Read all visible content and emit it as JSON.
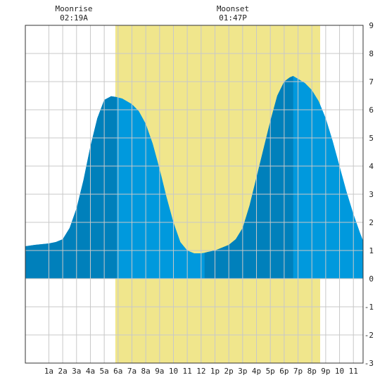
{
  "moon": {
    "rise_label": "Moonrise",
    "rise_time": "02:19A",
    "set_label": "Moonset",
    "set_time": "01:47P"
  },
  "chart_data": {
    "type": "area",
    "title": "",
    "xlabel": "",
    "ylabel": "",
    "x_unit": "hours after midnight",
    "xlim": [
      -0.7,
      23.7
    ],
    "ylim": [
      -3,
      9
    ],
    "grid": true,
    "x_tick_positions": [
      1,
      2,
      3,
      4,
      5,
      6,
      7,
      8,
      9,
      10,
      11,
      12,
      13,
      14,
      15,
      16,
      17,
      18,
      19,
      20,
      21,
      22,
      23
    ],
    "x_tick_labels": [
      "1a",
      "2a",
      "3a",
      "4a",
      "5a",
      "6a",
      "7a",
      "8a",
      "9a",
      "10",
      "11",
      "12",
      "1p",
      "2p",
      "3p",
      "4p",
      "5p",
      "6p",
      "7p",
      "8p",
      "9p",
      "10",
      "11"
    ],
    "y_ticks": [
      -3,
      -2,
      -1,
      0,
      1,
      2,
      3,
      4,
      5,
      6,
      7,
      8,
      9
    ],
    "daylight": {
      "start": 5.8,
      "end": 20.6,
      "color": "#f0e68c"
    },
    "colors": {
      "light": "#0099dd",
      "dark": "#0080bb",
      "grid": "#c8c8c8"
    },
    "dark_bands": [
      [
        -0.7,
        5.9
      ],
      [
        12.25,
        18.65
      ]
    ],
    "series": [
      {
        "x": [
          -0.7,
          0,
          1,
          1.5,
          2,
          2.5,
          3,
          3.5,
          4,
          4.5,
          5,
          5.5,
          5.9,
          6.3,
          7,
          7.5,
          8,
          8.5,
          9,
          9.5,
          10,
          10.5,
          11,
          11.5,
          12,
          12.25,
          12.5,
          13,
          13.5,
          14,
          14.5,
          15,
          15.5,
          16,
          16.5,
          17,
          17.5,
          18,
          18.4,
          18.65,
          19,
          19.5,
          20,
          20.5,
          21,
          21.5,
          22,
          22.5,
          23,
          23.5,
          23.7
        ],
        "values": [
          1.15,
          1.2,
          1.25,
          1.3,
          1.4,
          1.8,
          2.5,
          3.5,
          4.7,
          5.7,
          6.35,
          6.48,
          6.45,
          6.4,
          6.2,
          5.95,
          5.5,
          4.8,
          3.9,
          2.9,
          2.0,
          1.3,
          1.0,
          0.9,
          0.9,
          0.92,
          0.95,
          1.0,
          1.1,
          1.2,
          1.4,
          1.8,
          2.6,
          3.6,
          4.6,
          5.6,
          6.5,
          7.0,
          7.15,
          7.2,
          7.1,
          6.95,
          6.7,
          6.3,
          5.7,
          4.9,
          4.0,
          3.1,
          2.3,
          1.6,
          1.35
        ]
      }
    ]
  }
}
